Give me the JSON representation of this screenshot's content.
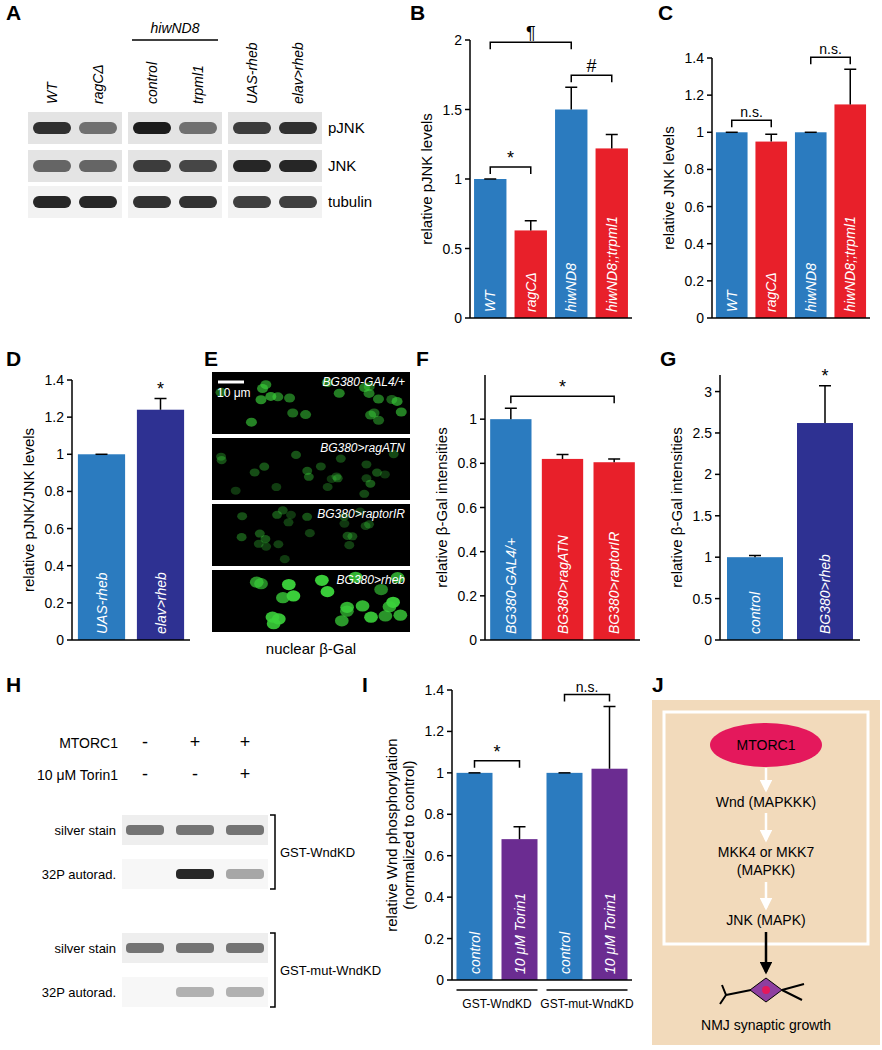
{
  "panel_labels": [
    "A",
    "B",
    "C",
    "D",
    "E",
    "F",
    "G",
    "H",
    "I",
    "J"
  ],
  "blot_a": {
    "columns": [
      "WT",
      "ragCΔ",
      "control",
      "trpml1",
      "UAS-rheb",
      "elav>rheb"
    ],
    "group": {
      "label": "hiwND8",
      "columns": [
        2,
        3
      ]
    },
    "rows": [
      "pJNK",
      "JNK",
      "tubulin"
    ]
  },
  "images_e": {
    "panels": [
      "BG380-GAL4/+",
      "BG380>ragATN",
      "BG380>raptorIR",
      "BG380>rheb"
    ],
    "scale_bar": "10 μm",
    "caption": "nuclear β-Gal"
  },
  "blot_h": {
    "conditions": [
      {
        "label": "MTORC1",
        "signs": [
          "-",
          "+",
          "+"
        ]
      },
      {
        "label": "10 μM Torin1",
        "signs": [
          "-",
          "-",
          "+"
        ]
      }
    ],
    "blots": [
      {
        "label": "GST-WndKD",
        "rows": [
          "silver stain",
          "32P autorad."
        ]
      },
      {
        "label": "GST-mut-WndKD",
        "rows": [
          "silver stain",
          "32P autorad."
        ]
      }
    ]
  },
  "diagram_j": {
    "nodes": [
      [
        "MTORC1"
      ],
      [
        "Wnd (MAPKKK)"
      ],
      [
        "MKK4 or MKK7",
        "(MAPKK)"
      ],
      [
        "JNK (MAPK)"
      ],
      [
        "NMJ synaptic growth"
      ]
    ]
  },
  "chart_data": [
    {
      "type": "bar",
      "y_label": [
        "relative pJNK levels"
      ],
      "categories": [
        "WT",
        "ragCΔ",
        "hiwND8",
        "hiwND8;;trpml1"
      ],
      "values": [
        1,
        0.63,
        1.5,
        1.22
      ],
      "errors": [
        0,
        0.07,
        0.16,
        0.1
      ],
      "colors": [
        "#2b7bbf",
        "#e8202a",
        "#2b7bbf",
        "#e8202a"
      ],
      "ylim": [
        0,
        2
      ],
      "yticks": [
        0,
        0.5,
        1,
        1.5,
        2
      ],
      "annotations": [
        {
          "text": "*",
          "between": [
            0,
            1
          ]
        },
        {
          "text": "#",
          "between": [
            2,
            3
          ]
        },
        {
          "text": "¶",
          "between": [
            0,
            2
          ]
        }
      ]
    },
    {
      "type": "bar",
      "y_label": [
        "relative JNK levels"
      ],
      "categories": [
        "WT",
        "ragCΔ",
        "hiwND8",
        "hiwND8;;trpml1"
      ],
      "values": [
        1,
        0.95,
        1,
        1.15
      ],
      "errors": [
        0,
        0.04,
        0,
        0.19
      ],
      "colors": [
        "#2b7bbf",
        "#e8202a",
        "#2b7bbf",
        "#e8202a"
      ],
      "ylim": [
        0,
        1.4
      ],
      "yticks": [
        0,
        0.2,
        0.4,
        0.6,
        0.8,
        1,
        1.2,
        1.4
      ],
      "annotations": [
        {
          "text": "n.s.",
          "between": [
            0,
            1
          ]
        },
        {
          "text": "n.s.",
          "between": [
            2,
            3
          ]
        }
      ]
    },
    {
      "type": "bar",
      "y_label": [
        "relative pJNK/JNK levels"
      ],
      "categories": [
        "UAS-rheb",
        "elav>rheb"
      ],
      "values": [
        1,
        1.24
      ],
      "errors": [
        0,
        0.06
      ],
      "colors": [
        "#2b7bbf",
        "#2e3192"
      ],
      "ylim": [
        0,
        1.4
      ],
      "yticks": [
        0,
        0.2,
        0.4,
        0.6,
        0.8,
        1,
        1.2,
        1.4
      ],
      "annotations": [
        {
          "text": "*",
          "between": [
            1
          ]
        }
      ]
    },
    {
      "type": "bar",
      "y_label": [
        "relative β-Gal intensities"
      ],
      "categories": [
        "BG380-GAL4/+",
        "BG380>ragATN",
        "BG380>raptorIR"
      ],
      "values": [
        1,
        0.82,
        0.805
      ],
      "errors": [
        0.05,
        0.02,
        0.015
      ],
      "colors": [
        "#2b7bbf",
        "#e8202a",
        "#e8202a"
      ],
      "ylim": [
        0,
        1.2
      ],
      "yticks": [
        0,
        0.2,
        0.4,
        0.6,
        0.8,
        1
      ],
      "annotations": [
        {
          "text": "*",
          "between": [
            0,
            2
          ]
        }
      ]
    },
    {
      "type": "bar",
      "y_label": [
        "relative β-Gal intensities"
      ],
      "categories": [
        "control",
        "BG380>rheb"
      ],
      "values": [
        1,
        2.62
      ],
      "errors": [
        0.02,
        0.45
      ],
      "colors": [
        "#2b7bbf",
        "#2e3192"
      ],
      "ylim": [
        0,
        3.2
      ],
      "yticks": [
        0,
        0.5,
        1,
        1.5,
        2,
        2.5,
        3
      ],
      "annotations": [
        {
          "text": "*",
          "between": [
            1
          ]
        }
      ]
    },
    {
      "type": "bar",
      "y_label": [
        "relative Wnd phosphorylation",
        "(normalized to control)"
      ],
      "categories": [
        "control",
        "10 μM Torin1",
        "control",
        "10 μM Torin1"
      ],
      "values": [
        1,
        0.68,
        1,
        1.02
      ],
      "errors": [
        0,
        0.06,
        0,
        0.3
      ],
      "colors": [
        "#2b7bbf",
        "#6b2c91",
        "#2b7bbf",
        "#6b2c91"
      ],
      "ylim": [
        0,
        1.4
      ],
      "yticks": [
        0,
        0.2,
        0.4,
        0.6,
        0.8,
        1,
        1.2,
        1.4
      ],
      "annotations": [
        {
          "text": "*",
          "between": [
            0,
            1
          ]
        },
        {
          "text": "n.s.",
          "between": [
            2,
            3
          ]
        }
      ],
      "groups": [
        {
          "label": "GST-WndKD",
          "between": [
            0,
            1
          ]
        },
        {
          "label": "GST-mut-WndKD",
          "between": [
            2,
            3
          ]
        }
      ]
    }
  ]
}
